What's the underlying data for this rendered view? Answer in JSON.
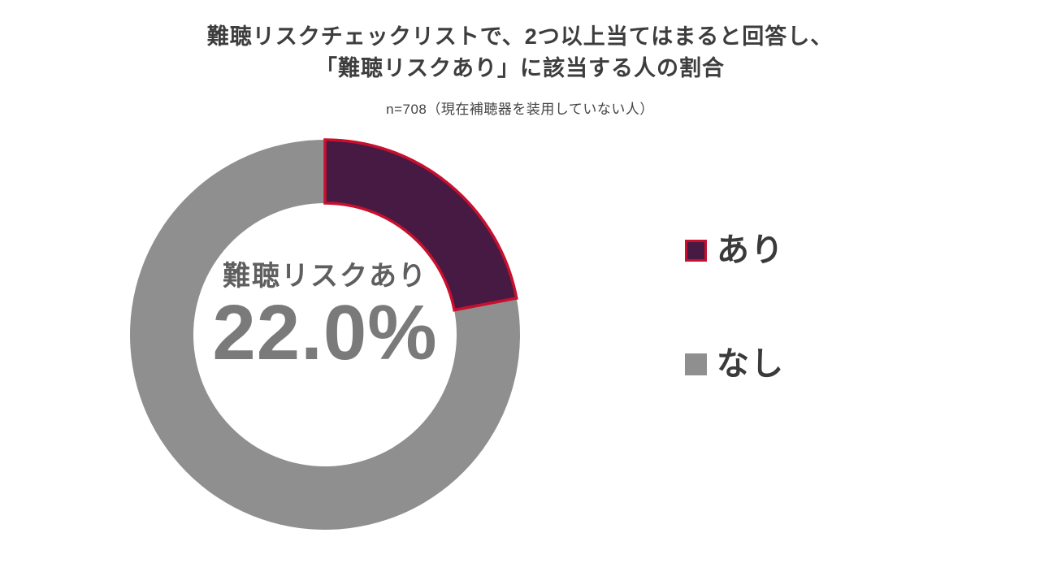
{
  "title": {
    "line1": "難聴リスクチェックリストで、2つ以上当てはまると回答し、",
    "line2": "「難聴リスクあり」に該当する人の割合",
    "subtitle": "n=708（現在補聴器を装用していない人）"
  },
  "chart_data": {
    "type": "pie",
    "donut": true,
    "start_angle_deg": 0,
    "direction": "clockwise",
    "categories": [
      "あり",
      "なし"
    ],
    "values": [
      22.0,
      78.0
    ],
    "colors": [
      "#471A44",
      "#8F8F8F"
    ],
    "stroke_colors": [
      "#C8102E",
      null
    ],
    "slice_names": [
      "ari",
      "nashi"
    ],
    "center_label": "難聴リスクあり",
    "center_value": "22.0%",
    "legend_position": "right",
    "title": "難聴リスクチェックリストで、2つ以上当てはまると回答し、「難聴リスクあり」に該当する人の割合",
    "subtitle": "n=708（現在補聴器を装用していない人）"
  },
  "legend": {
    "items": [
      {
        "label": "あり",
        "color": "#471A44",
        "border": "#C8102E"
      },
      {
        "label": "なし",
        "color": "#8F8F8F",
        "border": null
      }
    ]
  }
}
